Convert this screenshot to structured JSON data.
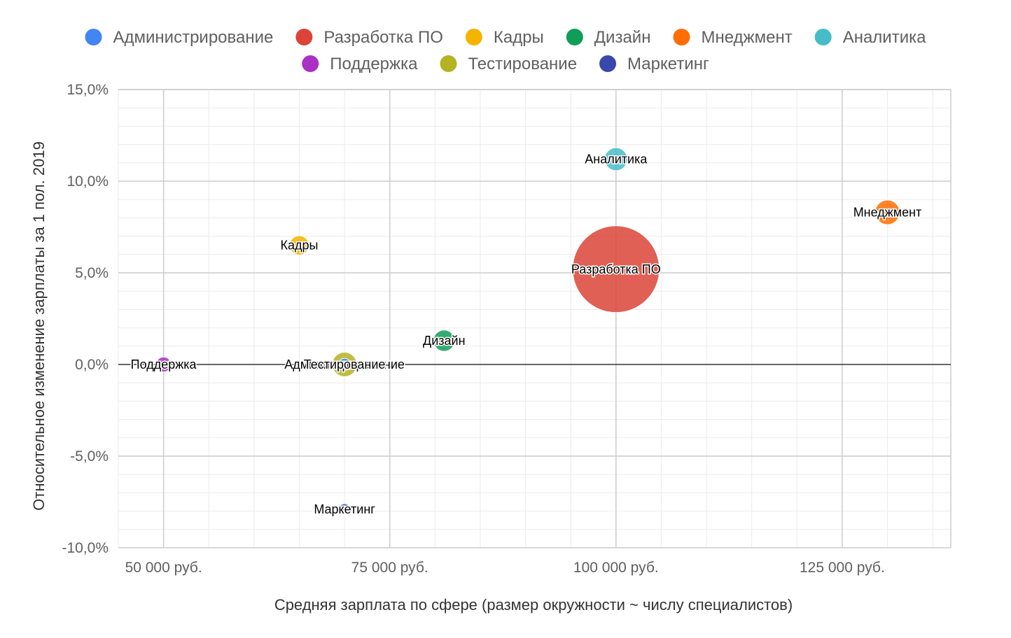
{
  "chart_data": {
    "type": "bubble",
    "xlabel": "Средняя зарплата по сфере (размер окружности ~ числу специалистов)",
    "ylabel": "Относительное изменение зарплаты за 1 пол. 2019",
    "xlim": [
      45000,
      137000
    ],
    "ylim": [
      -10,
      15
    ],
    "x_ticks": [
      {
        "value": 50000,
        "label": "50 000 руб."
      },
      {
        "value": 75000,
        "label": "75 000 руб."
      },
      {
        "value": 100000,
        "label": "100 000 руб."
      },
      {
        "value": 125000,
        "label": "125 000 руб."
      }
    ],
    "y_ticks": [
      {
        "value": 15,
        "label": "15,0%"
      },
      {
        "value": 10,
        "label": "10,0%"
      },
      {
        "value": 5,
        "label": "5,0%"
      },
      {
        "value": 0,
        "label": "0,0%"
      },
      {
        "value": -5,
        "label": "-5,0%"
      },
      {
        "value": -10,
        "label": "-10,0%"
      }
    ],
    "x_minor_step": 5000,
    "y_minor_step": 1,
    "legend_position": "top",
    "series": [
      {
        "name": "Администрирование",
        "x": 70000,
        "y": 0.0,
        "size": 2,
        "color": "#4285f4"
      },
      {
        "name": "Разработка ПО",
        "x": 100000,
        "y": 5.2,
        "size": 100,
        "color": "#db4437"
      },
      {
        "name": "Кадры",
        "x": 65000,
        "y": 6.5,
        "size": 5,
        "color": "#f4b400"
      },
      {
        "name": "Дизайн",
        "x": 81000,
        "y": 1.3,
        "size": 6,
        "color": "#0f9d58"
      },
      {
        "name": "Мнеджмент",
        "x": 130000,
        "y": 8.3,
        "size": 8,
        "color": "#ff6d01"
      },
      {
        "name": "Аналитика",
        "x": 100000,
        "y": 11.2,
        "size": 7,
        "color": "#46bdc6"
      },
      {
        "name": "Поддержка",
        "x": 50000,
        "y": 0.0,
        "size": 3,
        "color": "#ab30c4"
      },
      {
        "name": "Тестирование",
        "x": 70000,
        "y": 0.0,
        "size": 8,
        "color": "#b4b321"
      },
      {
        "name": "Маркетинг",
        "x": 70000,
        "y": -7.9,
        "size": 1,
        "color": "#3949ab"
      }
    ]
  }
}
